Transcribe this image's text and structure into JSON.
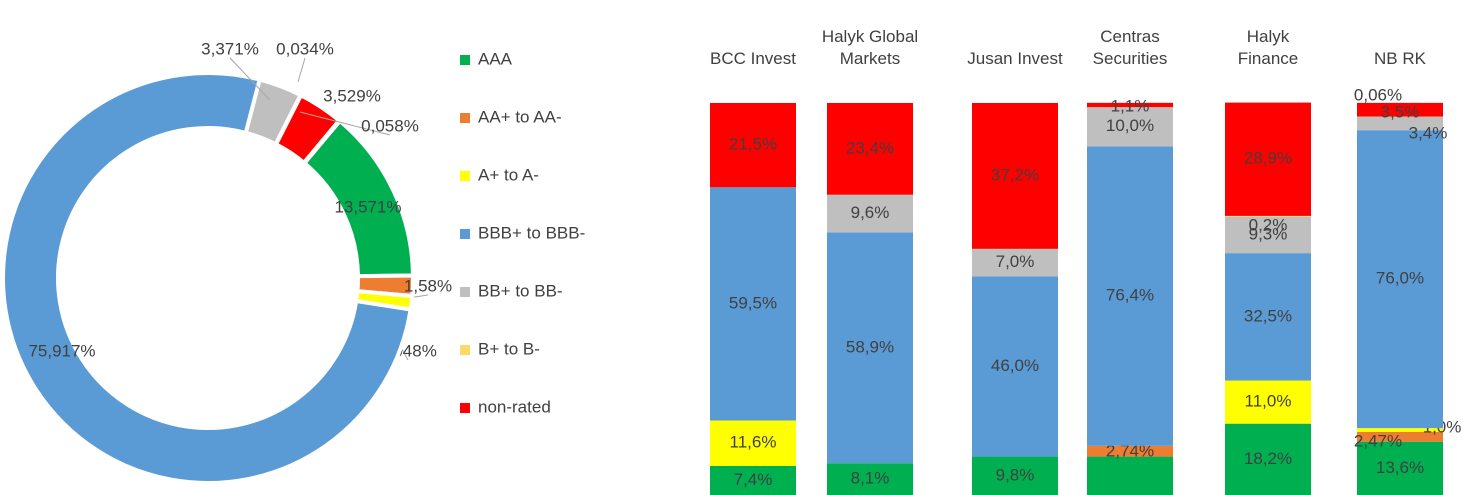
{
  "chart_data": [
    {
      "type": "pie",
      "categories": [
        "AAA",
        "AA+ to AA-",
        "A+ to A-",
        "BBB+ to BBB-",
        "BB+ to BB-",
        "B+ to B-",
        "non-rated",
        null
      ],
      "values": [
        13.571,
        1.58,
        1.048,
        75.917,
        3.371,
        0.034,
        3.529,
        0.058
      ],
      "value_labels": [
        "13,571%",
        "1,58%",
        "1,048%",
        "75,917%",
        "3,371%",
        "0,034%",
        "3,529%",
        "0,058%"
      ],
      "colors": [
        "#00b050",
        "#ed7d31",
        "#ffff00",
        "#5b9bd5",
        "#bfbfbf",
        "#ffd966",
        "#ff0000",
        "#a5a5a5"
      ],
      "legend": "right"
    },
    {
      "type": "stacked_bar",
      "categories": [
        "BCC Invest",
        "Halyk Global\nMarkets",
        "Jusan Invest",
        "Centras\nSecurities",
        "Halyk\nFinance",
        "NB RK"
      ],
      "ylim": [
        0,
        100
      ],
      "series": [
        {
          "color": "#00b050",
          "values": [
            7.4,
            8.1,
            9.8,
            9.8,
            18.2,
            13.6
          ],
          "value_labels": [
            "7,4%",
            "8,1%",
            "9,8%",
            null,
            "18,2%",
            "13,6%"
          ]
        },
        {
          "color": "#ed7d31",
          "values": [
            0,
            0,
            0,
            2.74,
            0,
            2.47
          ],
          "value_labels": [
            null,
            null,
            null,
            "2,74%",
            null,
            "2,47%"
          ]
        },
        {
          "color": "#ffff00",
          "values": [
            11.6,
            0,
            0,
            0,
            11.0,
            1.0
          ],
          "value_labels": [
            "11,6%",
            null,
            null,
            null,
            "11,0%",
            "1,0%"
          ]
        },
        {
          "color": "#5b9bd5",
          "values": [
            59.5,
            58.9,
            46.0,
            76.4,
            32.5,
            76.0
          ],
          "value_labels": [
            "59,5%",
            "58,9%",
            "46,0%",
            "76,4%",
            "32,5%",
            "76,0%"
          ]
        },
        {
          "color": "#bfbfbf",
          "values": [
            0,
            9.6,
            7.0,
            10.0,
            9.3,
            3.4
          ],
          "value_labels": [
            null,
            "9,6%",
            "7,0%",
            "10,0%",
            "9,3%",
            "3,4%"
          ]
        },
        {
          "color": "#ffd966",
          "values": [
            0,
            0,
            0,
            0,
            0.2,
            0.06
          ],
          "value_labels": [
            null,
            null,
            null,
            null,
            "0,2%",
            "0,06%"
          ]
        },
        {
          "color": "#ff0000",
          "values": [
            21.5,
            23.4,
            37.2,
            1.1,
            28.9,
            3.5
          ],
          "value_labels": [
            "21,5%",
            "23,4%",
            "37,2%",
            "1,1%",
            "28,9%",
            "3,5%"
          ]
        }
      ]
    }
  ]
}
